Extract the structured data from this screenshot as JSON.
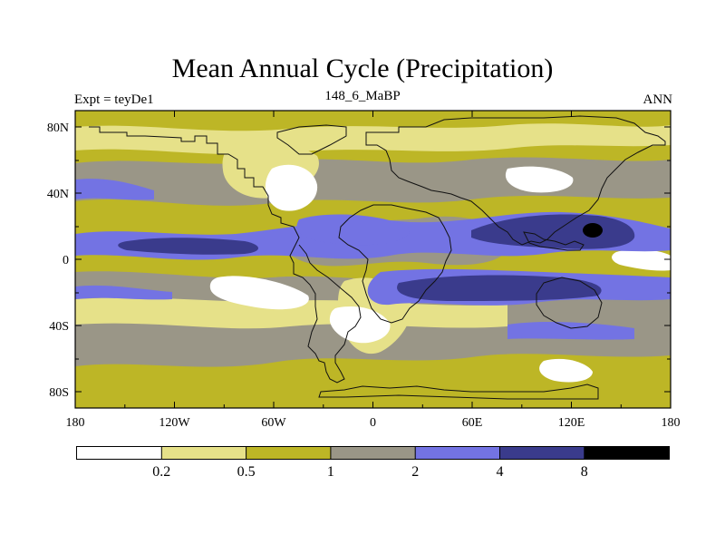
{
  "figure": {
    "title": "Mean Annual Cycle (Precipitation)",
    "experiment_label": "Expt = teyDe1",
    "subtitle": "148_6_MaBP",
    "season": "ANN"
  },
  "map": {
    "lat_ticks": [
      "80N",
      "40N",
      "0",
      "40S",
      "80S"
    ],
    "lon_ticks": [
      "180",
      "120W",
      "60W",
      "0",
      "60E",
      "120E",
      "180"
    ],
    "field_colors": {
      "ocean_low": "#ffffff",
      "level_1": "#e6e189",
      "level_2": "#bdb626",
      "level_3": "#9a9687",
      "level_4": "#7373e3",
      "level_5": "#3a3b8c",
      "level_6": "#000000"
    }
  },
  "colorbar": {
    "labels": [
      "0.2",
      "0.5",
      "1",
      "2",
      "4",
      "8"
    ],
    "colors": [
      "#ffffff",
      "#e6e189",
      "#bdb626",
      "#9a9687",
      "#7373e3",
      "#3a3b8c",
      "#000000"
    ]
  }
}
